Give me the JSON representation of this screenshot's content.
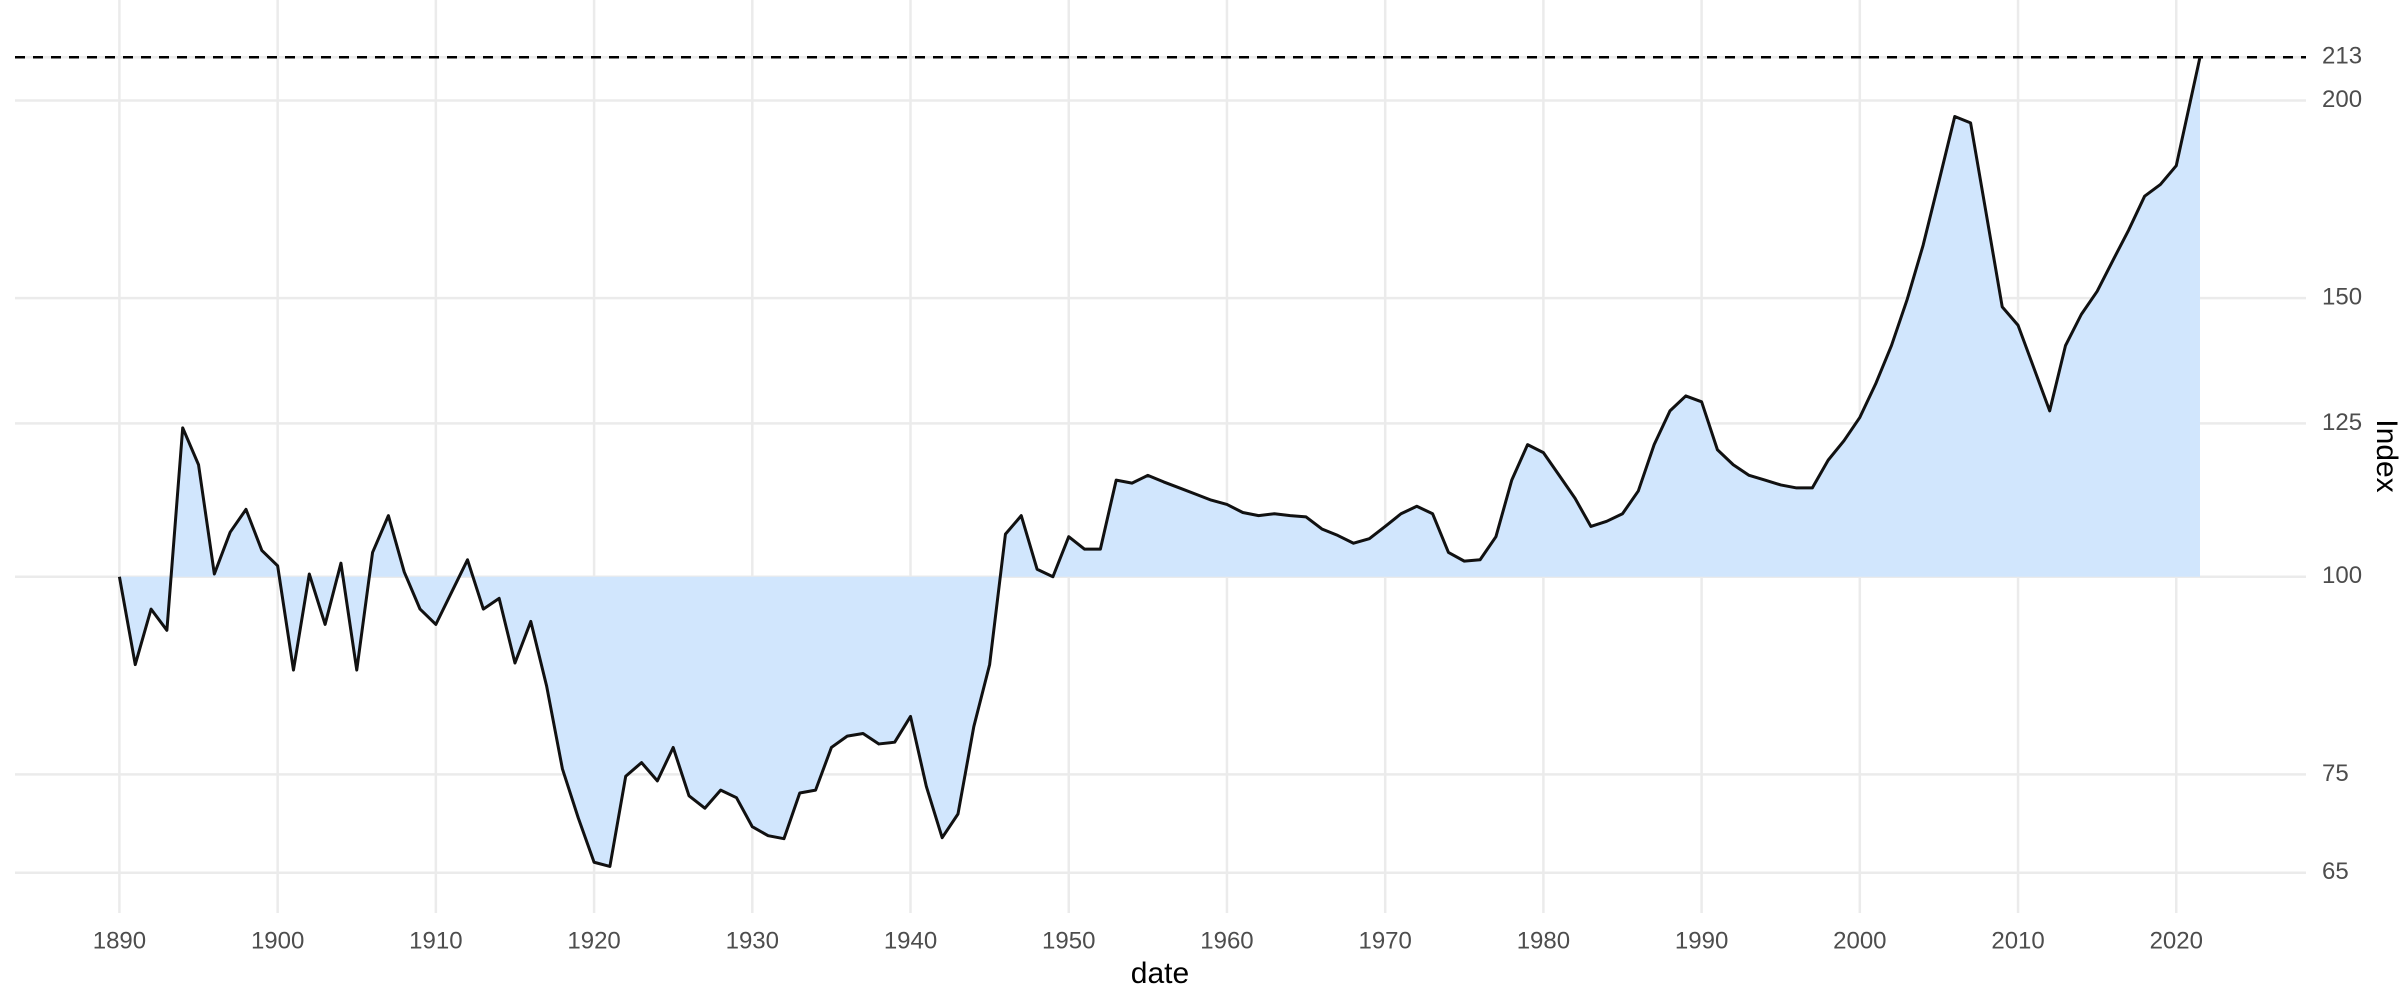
{
  "chart_data": {
    "type": "area",
    "x_label": "date",
    "y_label": "Index",
    "x": [
      1890,
      1891,
      1892,
      1893,
      1894,
      1895,
      1896,
      1897,
      1898,
      1899,
      1900,
      1901,
      1902,
      1903,
      1904,
      1905,
      1906,
      1907,
      1908,
      1909,
      1910,
      1911,
      1912,
      1913,
      1914,
      1915,
      1916,
      1917,
      1918,
      1919,
      1920,
      1921,
      1922,
      1923,
      1924,
      1925,
      1926,
      1927,
      1928,
      1929,
      1930,
      1931,
      1932,
      1933,
      1934,
      1935,
      1936,
      1937,
      1938,
      1939,
      1940,
      1941,
      1942,
      1943,
      1944,
      1945,
      1946,
      1947,
      1948,
      1949,
      1950,
      1951,
      1952,
      1953,
      1954,
      1955,
      1956,
      1957,
      1958,
      1959,
      1960,
      1961,
      1962,
      1963,
      1964,
      1965,
      1966,
      1967,
      1968,
      1969,
      1970,
      1971,
      1972,
      1973,
      1974,
      1975,
      1976,
      1977,
      1978,
      1979,
      1980,
      1981,
      1982,
      1983,
      1984,
      1985,
      1986,
      1987,
      1988,
      1989,
      1990,
      1991,
      1992,
      1993,
      1994,
      1995,
      1996,
      1997,
      1998,
      1999,
      2000,
      2001,
      2002,
      2003,
      2004,
      2005,
      2006,
      2007,
      2008,
      2009,
      2010,
      2011,
      2012,
      2013,
      2014,
      2015,
      2016,
      2017,
      2018,
      2019,
      2020,
      2021.5
    ],
    "values": [
      100,
      88,
      95.4,
      92.5,
      124.2,
      117.7,
      100.4,
      106.7,
      110.3,
      103.9,
      101.6,
      87.3,
      100.4,
      93.3,
      102,
      87.3,
      103.6,
      109.3,
      100.7,
      95.4,
      93.3,
      97.8,
      102.5,
      95.4,
      96.9,
      88.2,
      93.7,
      85.3,
      75.6,
      70.4,
      66,
      65.6,
      74.8,
      76.3,
      74.3,
      78,
      72.7,
      71.4,
      73.3,
      72.5,
      69.5,
      68.6,
      68.3,
      73,
      73.3,
      78,
      79.3,
      79.6,
      78.4,
      78.6,
      81.6,
      73.7,
      68.4,
      70.8,
      80.4,
      88,
      106.4,
      109.3,
      101.1,
      100,
      106,
      104.1,
      104.1,
      115.1,
      114.6,
      115.9,
      114.8,
      113.8,
      112.8,
      111.8,
      111.1,
      109.8,
      109.3,
      109.6,
      109.3,
      109.1,
      107.2,
      106.2,
      105,
      105.7,
      107.6,
      109.6,
      110.8,
      109.6,
      103.6,
      102.3,
      102.5,
      106,
      115.1,
      121.2,
      119.8,
      115.9,
      112.1,
      107.6,
      108.4,
      109.6,
      113.3,
      121.2,
      127.3,
      130.1,
      129,
      120.3,
      117.7,
      115.9,
      115.1,
      114.3,
      113.8,
      113.8,
      118.5,
      121.9,
      126.1,
      132.4,
      140,
      149.8,
      162,
      177.8,
      195.4,
      193.6,
      169.4,
      148.1,
      144.2,
      135.5,
      127.3,
      140,
      146.5,
      151.5,
      158.5,
      165.7,
      174,
      177,
      181.9,
      213
    ],
    "color": "#111111",
    "fill": "#d1e6fd",
    "area_baseline": 100,
    "reference_line": 213,
    "xlim": [
      1883.4,
      2028.2
    ],
    "xticks": [
      1890,
      1900,
      1910,
      1920,
      1930,
      1940,
      1950,
      1960,
      1970,
      1980,
      1990,
      2000,
      2010,
      2020
    ],
    "ylim": [
      61.3,
      231.5
    ],
    "yticks": [
      65,
      75,
      100,
      125,
      150,
      200,
      213
    ],
    "y_scale": "log",
    "grid": true
  }
}
